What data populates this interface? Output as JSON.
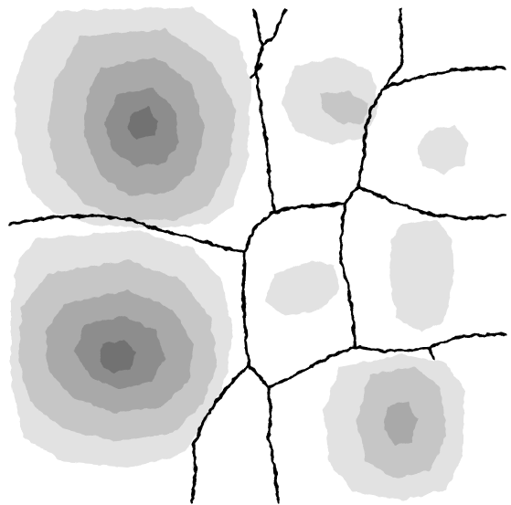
{
  "colors": {
    "background": "#ffffff",
    "boundary": "#000000",
    "shades": [
      "#e2e2e2",
      "#c6c6c6",
      "#a9a9a9",
      "#8d8d8d",
      "#727272"
    ]
  },
  "regions": [
    {
      "name": "region-top-left",
      "levels": 5
    },
    {
      "name": "region-top-center",
      "levels": 2
    },
    {
      "name": "region-top-right",
      "levels": 1
    },
    {
      "name": "region-bottom-left",
      "levels": 5
    },
    {
      "name": "region-middle-center",
      "levels": 1
    },
    {
      "name": "region-middle-right",
      "levels": 1
    },
    {
      "name": "region-bottom-right",
      "levels": 3
    }
  ]
}
